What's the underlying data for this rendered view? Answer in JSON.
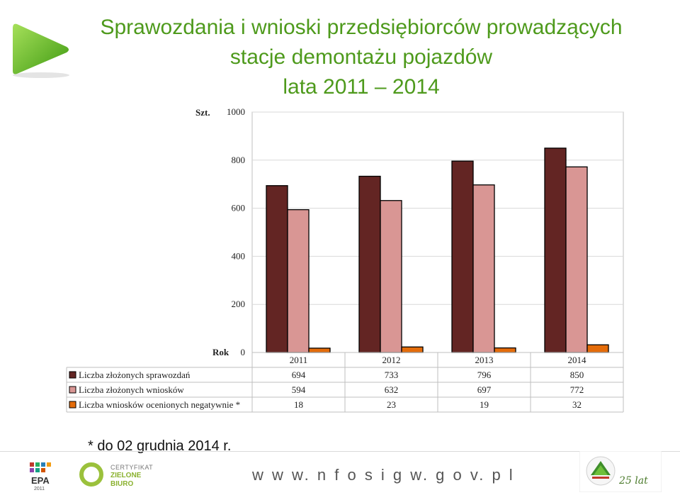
{
  "title": {
    "line1": "Sprawozdania i wnioski przedsiębiorców prowadzących",
    "line2": "stacje demontażu pojazdów",
    "line3": "lata 2011 – 2014"
  },
  "footnote": "* do 02 grudnia 2014 r.",
  "footer": {
    "website": "w w w. n f o s i g w. g o v. p l",
    "epa_text": "EPA",
    "epa_year": "2011",
    "cert_line1": "CERTYFIKAT",
    "cert_line2": "ZIELONE",
    "cert_line3": "BIURO",
    "anniversary": "25 lat"
  },
  "colors": {
    "title_green": "#4e9a1c",
    "series1": "#632523",
    "series2": "#d99694",
    "series3": "#e46c0a"
  },
  "icons": [
    "play-arrow-icon",
    "epa-logo-icon",
    "zielone-biuro-icon",
    "nfosigw-anniversary-icon"
  ],
  "chart_data": {
    "type": "bar",
    "ylabel": "Szt.",
    "xlabel": "Rok",
    "ylim": [
      0,
      1000
    ],
    "yticks": [
      0,
      200,
      400,
      600,
      800,
      1000
    ],
    "categories": [
      "2011",
      "2012",
      "2013",
      "2014"
    ],
    "series": [
      {
        "name": "Liczba złożonych sprawozdań",
        "values": [
          694,
          733,
          796,
          850
        ]
      },
      {
        "name": "Liczba złożonych wniosków",
        "values": [
          594,
          632,
          697,
          772
        ]
      },
      {
        "name": "Liczba wniosków ocenionych negatywnie *",
        "values": [
          18,
          23,
          19,
          32
        ]
      }
    ],
    "grid": true,
    "legend": "data-table"
  }
}
